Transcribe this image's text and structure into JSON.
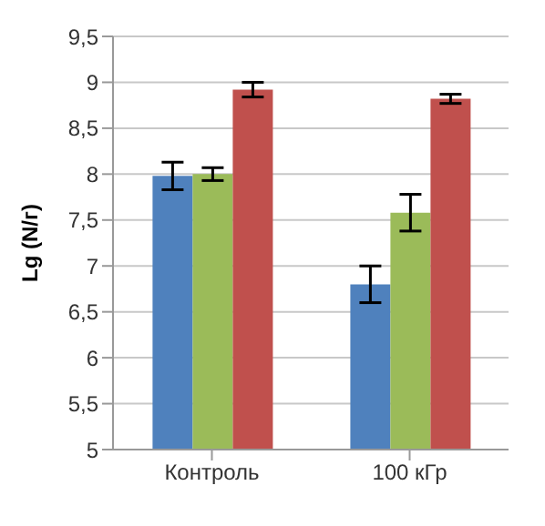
{
  "chart_data": {
    "type": "bar",
    "ylabel": "Lg (N/г)",
    "categories": [
      "Контроль",
      "100 кГр"
    ],
    "series": [
      {
        "color": "#4f81bd",
        "values": [
          7.98,
          6.8
        ],
        "errors": [
          0.15,
          0.2
        ]
      },
      {
        "color": "#9bbb59",
        "values": [
          8.0,
          7.58
        ],
        "errors": [
          0.07,
          0.2
        ]
      },
      {
        "color": "#c0504d",
        "values": [
          8.92,
          8.82
        ],
        "errors": [
          0.08,
          0.05
        ]
      }
    ],
    "ylim": [
      5,
      9.5
    ],
    "yticks": [
      5,
      {
        "value": 5.5,
        "label": "5,5"
      },
      6,
      {
        "value": 6.5,
        "label": "6,5"
      },
      7,
      {
        "value": 7.5,
        "label": "7,5"
      },
      8,
      {
        "value": 8.5,
        "label": "8,5"
      },
      9,
      {
        "value": 9.5,
        "label": "9,5"
      }
    ],
    "grid": "y"
  }
}
